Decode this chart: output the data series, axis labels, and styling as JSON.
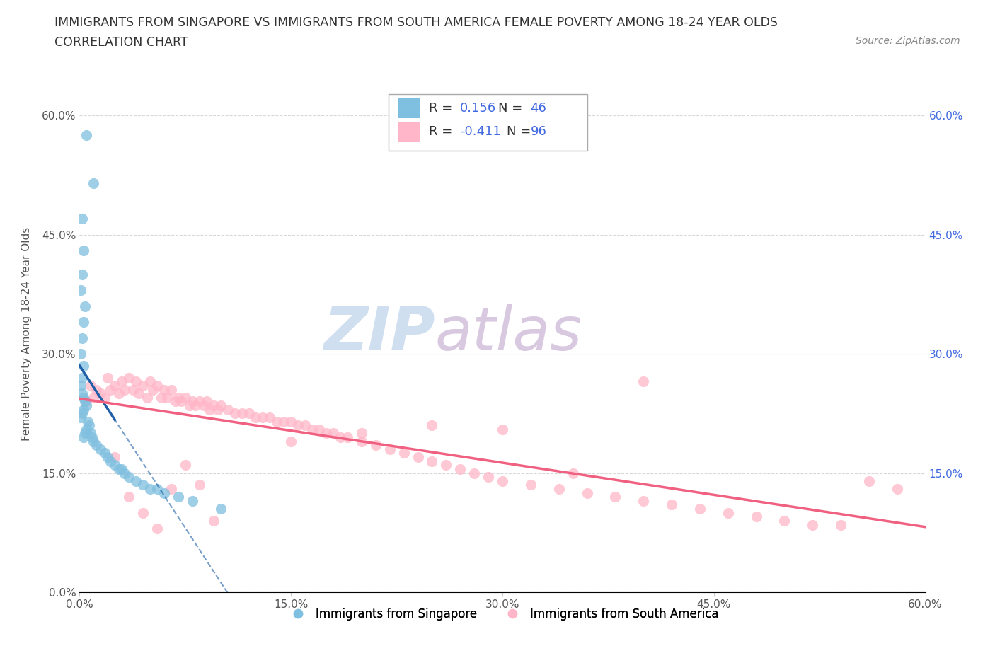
{
  "title_line1": "IMMIGRANTS FROM SINGAPORE VS IMMIGRANTS FROM SOUTH AMERICA FEMALE POVERTY AMONG 18-24 YEAR OLDS",
  "title_line2": "CORRELATION CHART",
  "source_text": "Source: ZipAtlas.com",
  "ylabel": "Female Poverty Among 18-24 Year Olds",
  "xlim": [
    0.0,
    0.6
  ],
  "ylim": [
    0.0,
    0.65
  ],
  "xtick_labels": [
    "0.0%",
    "15.0%",
    "30.0%",
    "45.0%",
    "60.0%"
  ],
  "xtick_vals": [
    0.0,
    0.15,
    0.3,
    0.45,
    0.6
  ],
  "ytick_labels_left": [
    "0.0%",
    "15.0%",
    "30.0%",
    "45.0%",
    "60.0%"
  ],
  "ytick_vals": [
    0.0,
    0.15,
    0.3,
    0.45,
    0.6
  ],
  "ytick_labels_right": [
    "15.0%",
    "30.0%",
    "45.0%",
    "60.0%"
  ],
  "ytick_vals_right": [
    0.15,
    0.3,
    0.45,
    0.6
  ],
  "watermark_zip": "ZIP",
  "watermark_atlas": "atlas",
  "color_singapore": "#7fbfdf",
  "color_south_america": "#ffb6c8",
  "color_trend_singapore": "#1e5fa8",
  "color_trend_south_america": "#f06080",
  "background_color": "#ffffff",
  "grid_color": "#d8d8d8",
  "title_fontsize": 12.5,
  "label_fontsize": 11,
  "tick_fontsize": 11,
  "singapore_x": [
    0.005,
    0.01,
    0.002,
    0.003,
    0.002,
    0.001,
    0.004,
    0.003,
    0.002,
    0.001,
    0.003,
    0.002,
    0.001,
    0.002,
    0.003,
    0.004,
    0.005,
    0.003,
    0.002,
    0.001,
    0.006,
    0.007,
    0.005,
    0.004,
    0.003,
    0.008,
    0.009,
    0.01,
    0.012,
    0.015,
    0.018,
    0.02,
    0.022,
    0.025,
    0.028,
    0.03,
    0.032,
    0.035,
    0.04,
    0.045,
    0.05,
    0.055,
    0.06,
    0.07,
    0.08,
    0.1
  ],
  "singapore_y": [
    0.575,
    0.515,
    0.47,
    0.43,
    0.4,
    0.38,
    0.36,
    0.34,
    0.32,
    0.3,
    0.285,
    0.27,
    0.26,
    0.25,
    0.245,
    0.24,
    0.235,
    0.23,
    0.225,
    0.22,
    0.215,
    0.21,
    0.205,
    0.2,
    0.195,
    0.2,
    0.195,
    0.19,
    0.185,
    0.18,
    0.175,
    0.17,
    0.165,
    0.16,
    0.155,
    0.155,
    0.15,
    0.145,
    0.14,
    0.135,
    0.13,
    0.13,
    0.125,
    0.12,
    0.115,
    0.105
  ],
  "south_america_x": [
    0.005,
    0.008,
    0.01,
    0.012,
    0.015,
    0.018,
    0.02,
    0.022,
    0.025,
    0.028,
    0.03,
    0.032,
    0.035,
    0.038,
    0.04,
    0.042,
    0.045,
    0.048,
    0.05,
    0.052,
    0.055,
    0.058,
    0.06,
    0.062,
    0.065,
    0.068,
    0.07,
    0.072,
    0.075,
    0.078,
    0.08,
    0.082,
    0.085,
    0.088,
    0.09,
    0.092,
    0.095,
    0.098,
    0.1,
    0.105,
    0.11,
    0.115,
    0.12,
    0.125,
    0.13,
    0.135,
    0.14,
    0.145,
    0.15,
    0.155,
    0.16,
    0.165,
    0.17,
    0.175,
    0.18,
    0.185,
    0.19,
    0.2,
    0.21,
    0.22,
    0.23,
    0.24,
    0.25,
    0.26,
    0.27,
    0.28,
    0.29,
    0.3,
    0.32,
    0.34,
    0.36,
    0.38,
    0.4,
    0.42,
    0.44,
    0.46,
    0.48,
    0.5,
    0.52,
    0.54,
    0.56,
    0.58,
    0.025,
    0.035,
    0.045,
    0.055,
    0.065,
    0.075,
    0.085,
    0.095,
    0.15,
    0.2,
    0.25,
    0.3,
    0.35,
    0.4
  ],
  "south_america_y": [
    0.24,
    0.26,
    0.245,
    0.255,
    0.25,
    0.245,
    0.27,
    0.255,
    0.26,
    0.25,
    0.265,
    0.255,
    0.27,
    0.255,
    0.265,
    0.25,
    0.26,
    0.245,
    0.265,
    0.255,
    0.26,
    0.245,
    0.255,
    0.245,
    0.255,
    0.24,
    0.245,
    0.24,
    0.245,
    0.235,
    0.24,
    0.235,
    0.24,
    0.235,
    0.24,
    0.23,
    0.235,
    0.23,
    0.235,
    0.23,
    0.225,
    0.225,
    0.225,
    0.22,
    0.22,
    0.22,
    0.215,
    0.215,
    0.215,
    0.21,
    0.21,
    0.205,
    0.205,
    0.2,
    0.2,
    0.195,
    0.195,
    0.19,
    0.185,
    0.18,
    0.175,
    0.17,
    0.165,
    0.16,
    0.155,
    0.15,
    0.145,
    0.14,
    0.135,
    0.13,
    0.125,
    0.12,
    0.115,
    0.11,
    0.105,
    0.1,
    0.095,
    0.09,
    0.085,
    0.085,
    0.14,
    0.13,
    0.17,
    0.12,
    0.1,
    0.08,
    0.13,
    0.16,
    0.135,
    0.09,
    0.19,
    0.2,
    0.21,
    0.205,
    0.15,
    0.265
  ]
}
